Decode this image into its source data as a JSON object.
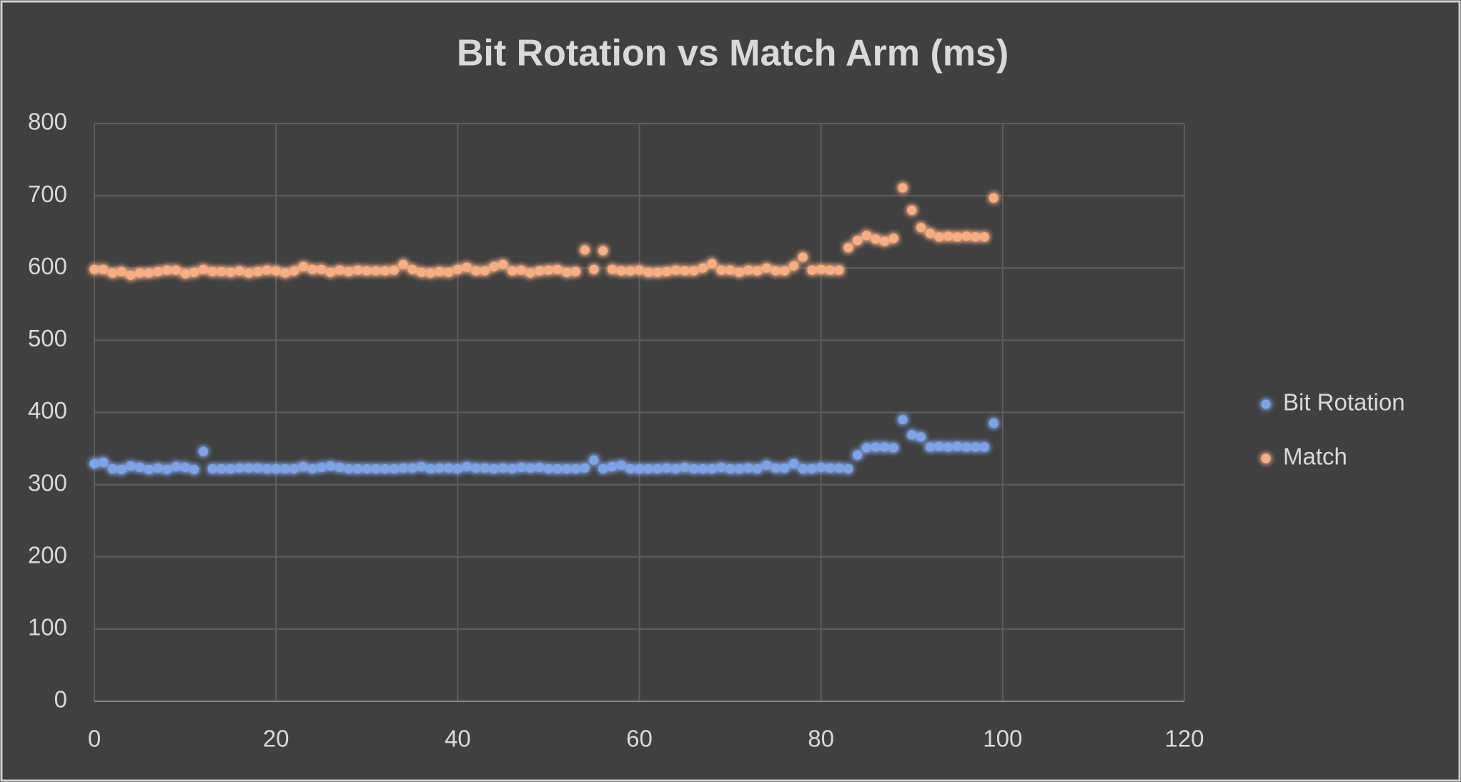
{
  "chart_data": {
    "type": "scatter",
    "title": "Bit Rotation vs Match Arm (ms)",
    "x": [
      0,
      1,
      2,
      3,
      4,
      5,
      6,
      7,
      8,
      9,
      10,
      11,
      12,
      13,
      14,
      15,
      16,
      17,
      18,
      19,
      20,
      21,
      22,
      23,
      24,
      25,
      26,
      27,
      28,
      29,
      30,
      31,
      32,
      33,
      34,
      35,
      36,
      37,
      38,
      39,
      40,
      41,
      42,
      43,
      44,
      45,
      46,
      47,
      48,
      49,
      50,
      51,
      52,
      53,
      54,
      55,
      56,
      57,
      58,
      59,
      60,
      61,
      62,
      63,
      64,
      65,
      66,
      67,
      68,
      69,
      70,
      71,
      72,
      73,
      74,
      75,
      76,
      77,
      78,
      79,
      80,
      81,
      82,
      83,
      84,
      85,
      86,
      87,
      88,
      89,
      90,
      91,
      92,
      93,
      94,
      95,
      96,
      97,
      98,
      99
    ],
    "series": [
      {
        "name": "Bit Rotation",
        "color": "#7fa3e6",
        "values": [
          329,
          331,
          322,
          321,
          326,
          324,
          321,
          323,
          321,
          325,
          324,
          321,
          346,
          322,
          322,
          322,
          323,
          323,
          323,
          322,
          322,
          322,
          322,
          325,
          322,
          324,
          326,
          324,
          322,
          322,
          322,
          322,
          322,
          322,
          323,
          323,
          325,
          322,
          323,
          323,
          322,
          325,
          323,
          323,
          322,
          323,
          322,
          324,
          323,
          324,
          322,
          322,
          322,
          322,
          323,
          334,
          322,
          325,
          327,
          322,
          322,
          322,
          322,
          323,
          322,
          324,
          322,
          322,
          322,
          324,
          322,
          322,
          323,
          322,
          327,
          323,
          323,
          329,
          322,
          322,
          324,
          323,
          323,
          322,
          341,
          351,
          352,
          352,
          351,
          390,
          369,
          366,
          352,
          353,
          352,
          353,
          352,
          352,
          352,
          385
        ]
      },
      {
        "name": "Match",
        "color": "#f6ae84",
        "values": [
          598,
          598,
          593,
          595,
          590,
          593,
          593,
          595,
          597,
          597,
          592,
          594,
          598,
          595,
          595,
          594,
          596,
          593,
          595,
          597,
          596,
          593,
          596,
          602,
          598,
          598,
          594,
          597,
          595,
          597,
          596,
          596,
          596,
          597,
          605,
          598,
          594,
          593,
          595,
          594,
          598,
          601,
          596,
          596,
          602,
          605,
          596,
          597,
          593,
          596,
          597,
          598,
          594,
          595,
          625,
          598,
          624,
          598,
          596,
          596,
          597,
          594,
          594,
          595,
          597,
          596,
          596,
          600,
          606,
          597,
          597,
          594,
          597,
          596,
          600,
          596,
          596,
          603,
          615,
          597,
          598,
          597,
          597,
          628,
          638,
          645,
          640,
          637,
          641,
          711,
          680,
          656,
          648,
          643,
          644,
          643,
          644,
          643,
          643,
          697
        ]
      }
    ],
    "xlim": [
      0,
      120
    ],
    "xticks": [
      0,
      20,
      40,
      60,
      80,
      100,
      120
    ],
    "ylim": [
      0,
      800
    ],
    "yticks": [
      0,
      100,
      200,
      300,
      400,
      500,
      600,
      700,
      800
    ],
    "grid": true,
    "legend": "right"
  }
}
